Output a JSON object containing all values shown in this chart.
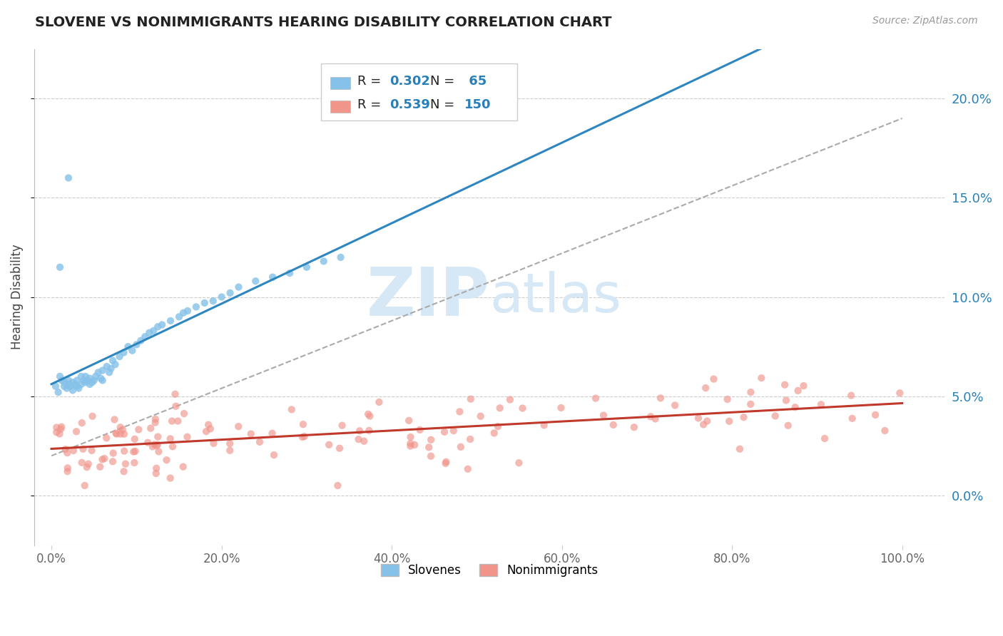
{
  "title": "SLOVENE VS NONIMMIGRANTS HEARING DISABILITY CORRELATION CHART",
  "source_text": "Source: ZipAtlas.com",
  "ylabel": "Hearing Disability",
  "xlim": [
    -0.02,
    1.05
  ],
  "ylim": [
    -0.025,
    0.225
  ],
  "xticks": [
    0.0,
    0.2,
    0.4,
    0.6,
    0.8,
    1.0
  ],
  "yticks": [
    0.0,
    0.05,
    0.1,
    0.15,
    0.2
  ],
  "ytick_labels": [
    "0.0%",
    "5.0%",
    "10.0%",
    "15.0%",
    "20.0%"
  ],
  "xtick_labels": [
    "0.0%",
    "20.0%",
    "40.0%",
    "60.0%",
    "80.0%",
    "100.0%"
  ],
  "slovene_R": 0.302,
  "slovene_N": 65,
  "nonimm_R": 0.539,
  "nonimm_N": 150,
  "slovene_color": "#85C1E9",
  "nonimm_color": "#F1948A",
  "slovene_line_color": "#2E86C1",
  "nonimm_line_color": "#C0392B",
  "dashed_line_color": "#AAAAAA",
  "right_axis_color": "#2980B9",
  "watermark_color": "#D6E8F5",
  "background_color": "#FFFFFF",
  "grid_color": "#CCCCCC",
  "legend_label_slovenes": "Slovenes",
  "legend_label_nonimm": "Nonimmigrants"
}
